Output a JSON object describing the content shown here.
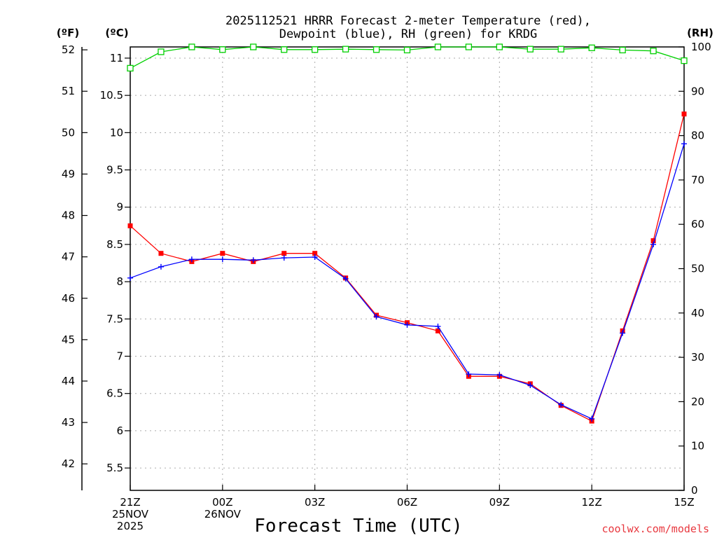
{
  "chart_data": {
    "type": "line",
    "title": "2025112521 HRRR Forecast 2-meter Temperature (red),",
    "subtitle": "Dewpoint (blue), RH (green) for KRDG",
    "xlabel": "Forecast Time (UTC)",
    "unit_labels": {
      "fahrenheit": "(ºF)",
      "celsius": "(ºC)",
      "rh": "(RH)"
    },
    "hours": [
      0,
      1,
      2,
      3,
      4,
      5,
      6,
      7,
      8,
      9,
      10,
      11,
      12,
      13,
      14,
      15,
      16,
      17,
      18
    ],
    "x_range": [
      0,
      18
    ],
    "x_ticks": [
      {
        "hour": 0,
        "lines": [
          "21Z",
          "25NOV",
          "2025"
        ]
      },
      {
        "hour": 3,
        "lines": [
          "00Z",
          "26NOV"
        ]
      },
      {
        "hour": 6,
        "lines": [
          "03Z"
        ]
      },
      {
        "hour": 9,
        "lines": [
          "06Z"
        ]
      },
      {
        "hour": 12,
        "lines": [
          "09Z"
        ]
      },
      {
        "hour": 15,
        "lines": [
          "12Z"
        ]
      },
      {
        "hour": 18,
        "lines": [
          "15Z"
        ]
      }
    ],
    "celsius_axis": {
      "range": [
        5.2,
        11.15
      ],
      "ticks": [
        5.5,
        6,
        6.5,
        7,
        7.5,
        8,
        8.5,
        9,
        9.5,
        10,
        10.5,
        11
      ],
      "tick_labels": [
        "5.5",
        "6",
        "6.5",
        "7",
        "7.5",
        "8",
        "8.5",
        "9",
        "9.5",
        "10",
        "10.5",
        "11"
      ]
    },
    "fahrenheit_axis": {
      "ticks": [
        42,
        43,
        44,
        45,
        46,
        47,
        48,
        49,
        50,
        51,
        52
      ],
      "tick_labels": [
        "42",
        "43",
        "44",
        "45",
        "46",
        "47",
        "48",
        "49",
        "50",
        "51",
        "52"
      ]
    },
    "rh_axis": {
      "range": [
        0,
        100
      ],
      "ticks": [
        0,
        10,
        20,
        30,
        40,
        50,
        60,
        70,
        80,
        90,
        100
      ],
      "tick_labels": [
        "0",
        "10",
        "20",
        "30",
        "40",
        "50",
        "60",
        "70",
        "80",
        "90",
        "100"
      ]
    },
    "grid": true,
    "series": [
      {
        "name": "Temperature",
        "unit": "C",
        "axis": "celsius",
        "color": "#ff0000",
        "marker": "filled-square",
        "values": [
          8.75,
          8.38,
          8.27,
          8.38,
          8.27,
          8.38,
          8.38,
          8.05,
          7.55,
          7.45,
          7.34,
          6.73,
          6.73,
          6.63,
          6.34,
          6.13,
          7.34,
          8.55,
          10.25
        ]
      },
      {
        "name": "Dewpoint",
        "unit": "C",
        "axis": "celsius",
        "color": "#0000ff",
        "marker": "plus",
        "values": [
          8.05,
          8.2,
          8.3,
          8.3,
          8.29,
          8.32,
          8.33,
          8.04,
          7.53,
          7.42,
          7.4,
          6.76,
          6.75,
          6.61,
          6.35,
          6.16,
          7.31,
          8.5,
          9.85
        ]
      },
      {
        "name": "RH",
        "unit": "%",
        "axis": "rh",
        "color": "#00d000",
        "marker": "open-square",
        "values": [
          95.2,
          98.9,
          100,
          99.4,
          100,
          99.4,
          99.4,
          99.5,
          99.4,
          99.3,
          100,
          100,
          100,
          99.5,
          99.5,
          99.8,
          99.3,
          99.1,
          96.9
        ]
      }
    ]
  },
  "watermark": {
    "text": "coolwx.com/models",
    "color": "#e8383f"
  }
}
